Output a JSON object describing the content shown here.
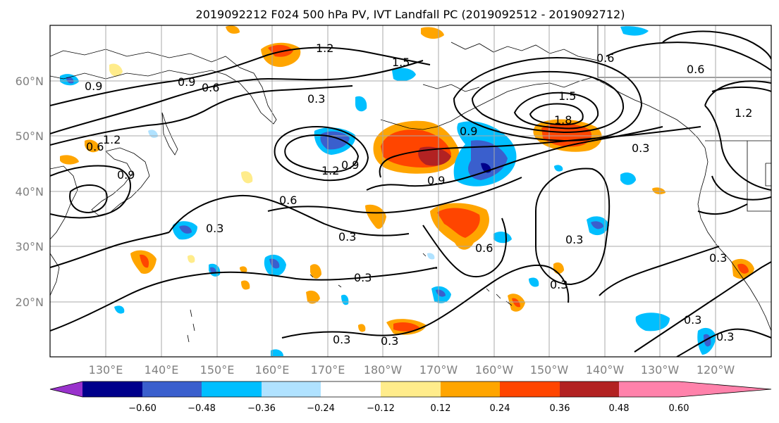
{
  "title": "2019092212 F024 500 hPa PV, IVT Landfall PC (2019092512 - 2019092712)",
  "lat_labels": [
    "60°N",
    "50°N",
    "40°N",
    "30°N",
    "20°N"
  ],
  "lon_labels": [
    "130°E",
    "140°E",
    "150°E",
    "160°E",
    "170°E",
    "180°W",
    "170°W",
    "160°W",
    "150°W",
    "140°W",
    "130°W",
    "120°W"
  ],
  "colorbar": {
    "ticks": [
      "−0.60",
      "−0.48",
      "−0.36",
      "−0.24",
      "−0.12",
      "0.12",
      "0.24",
      "0.36",
      "0.48",
      "0.60"
    ],
    "colors": [
      "#9932cc",
      "#00008b",
      "#3a5fcd",
      "#00bfff",
      "#b0e2ff",
      "#ffffff",
      "#ffec8b",
      "#ffa500",
      "#ff4500",
      "#b22222",
      "#ff82ab"
    ]
  },
  "contour_labels": [
    "1.2",
    "0.9",
    "1.5",
    "0.6",
    "0.9",
    "0.6",
    "0.3",
    "1.2",
    "0.9",
    "0.6",
    "0.3",
    "0.9",
    "1.5",
    "1.8",
    "0.3",
    "1.2",
    "0.9",
    "0.6",
    "1.2",
    "0.9",
    "0.6",
    "0.3",
    "0.3",
    "0.6",
    "0.3",
    "0.3",
    "0.3",
    "0.3",
    "0.3",
    "0.3",
    "0.3"
  ]
}
